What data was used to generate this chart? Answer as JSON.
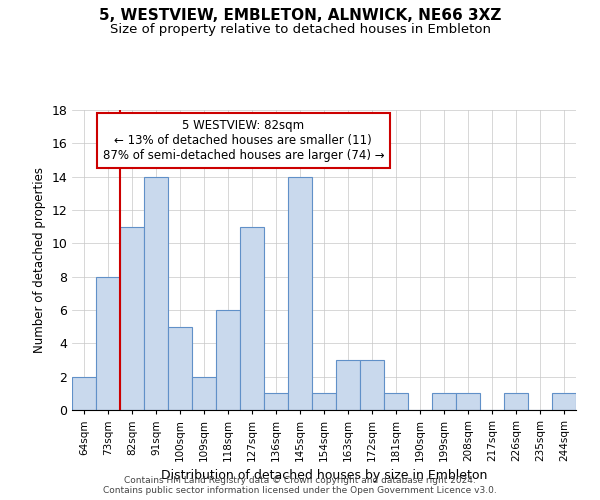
{
  "title": "5, WESTVIEW, EMBLETON, ALNWICK, NE66 3XZ",
  "subtitle": "Size of property relative to detached houses in Embleton",
  "xlabel": "Distribution of detached houses by size in Embleton",
  "ylabel": "Number of detached properties",
  "bin_labels": [
    "64sqm",
    "73sqm",
    "82sqm",
    "91sqm",
    "100sqm",
    "109sqm",
    "118sqm",
    "127sqm",
    "136sqm",
    "145sqm",
    "154sqm",
    "163sqm",
    "172sqm",
    "181sqm",
    "190sqm",
    "199sqm",
    "208sqm",
    "217sqm",
    "226sqm",
    "235sqm",
    "244sqm"
  ],
  "bar_values": [
    2,
    8,
    11,
    14,
    5,
    2,
    6,
    11,
    1,
    14,
    1,
    3,
    3,
    1,
    0,
    1,
    1,
    0,
    1,
    0,
    1
  ],
  "bar_color": "#c9d9ed",
  "bar_edge_color": "#6090c8",
  "reference_line_index": 2,
  "reference_line_color": "#cc0000",
  "annotation_text": "5 WESTVIEW: 82sqm\n← 13% of detached houses are smaller (11)\n87% of semi-detached houses are larger (74) →",
  "annotation_box_color": "#ffffff",
  "annotation_box_edge_color": "#cc0000",
  "ylim": [
    0,
    18
  ],
  "yticks": [
    0,
    2,
    4,
    6,
    8,
    10,
    12,
    14,
    16,
    18
  ],
  "footer_line1": "Contains HM Land Registry data © Crown copyright and database right 2024.",
  "footer_line2": "Contains public sector information licensed under the Open Government Licence v3.0.",
  "background_color": "#ffffff",
  "grid_color": "#c8c8c8"
}
